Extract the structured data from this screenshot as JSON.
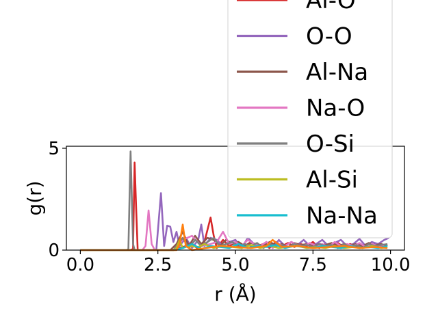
{
  "chart_data": {
    "type": "line",
    "title": "",
    "xlabel": "r (Å)",
    "ylabel": "g(r)",
    "xlim": [
      -0.45,
      10.45
    ],
    "ylim": [
      0,
      5.1
    ],
    "xticks": [
      "0.0",
      "2.5",
      "5.0",
      "7.5",
      "10.0"
    ],
    "yticks": [
      "0",
      "5"
    ],
    "grid": false,
    "legend_placement": "upper-right",
    "legend": [
      "Al-O",
      "O-O",
      "Al-Na",
      "Na-O",
      "O-Si",
      "Al-Si",
      "Na-Na"
    ],
    "series": [
      {
        "name": "Al-O",
        "color": "#d62728",
        "x": [
          0,
          1.6,
          1.7,
          1.75,
          1.8,
          1.85,
          2.0,
          3.0,
          3.6,
          3.8,
          4.0,
          4.2,
          4.3,
          4.4,
          4.6,
          4.8,
          5.0,
          5.2,
          5.5,
          5.7,
          5.9,
          6.1,
          6.3,
          6.5,
          6.7,
          6.9,
          7.1,
          7.3,
          7.5,
          7.7,
          7.9,
          8.1,
          8.3,
          8.5,
          8.7,
          8.9,
          9.1,
          9.3,
          9.5,
          9.7,
          9.9
        ],
        "y": [
          0,
          0,
          0.05,
          4.3,
          2.0,
          0,
          0,
          0,
          0.3,
          0.05,
          0.4,
          1.6,
          0.7,
          0.1,
          0.5,
          0.2,
          0.35,
          0.1,
          0.4,
          0.2,
          0.3,
          0.1,
          0.4,
          0.2,
          0.35,
          0.15,
          0.3,
          0.2,
          0.4,
          0.1,
          0.3,
          0.2,
          0.35,
          0.15,
          0.3,
          0.2,
          0.25,
          0.15,
          0.3,
          0.2,
          0.25
        ]
      },
      {
        "name": "O-O",
        "color": "#9467bd",
        "x": [
          0,
          2.3,
          2.45,
          2.6,
          2.7,
          2.8,
          2.9,
          3.0,
          3.1,
          3.2,
          3.4,
          3.6,
          3.8,
          3.9,
          4.0,
          4.2,
          4.4,
          4.6,
          4.8,
          5.0,
          5.2,
          5.4,
          5.6,
          5.8,
          6.0,
          6.2,
          6.4,
          6.6,
          6.8,
          7.0,
          7.2,
          7.4,
          7.6,
          7.8,
          8.0,
          8.2,
          8.4,
          8.6,
          8.8,
          9.0,
          9.2,
          9.4,
          9.6,
          9.8,
          9.95
        ],
        "y": [
          0,
          0,
          0,
          2.8,
          0.2,
          1.2,
          1.15,
          0.4,
          0.9,
          0.2,
          0.6,
          0.1,
          0.5,
          1.25,
          0.2,
          0.6,
          0.5,
          0.2,
          0.4,
          0.5,
          0.1,
          0.6,
          0.3,
          0.2,
          0.4,
          0.1,
          0.5,
          0.2,
          0.4,
          0.25,
          0.5,
          0.2,
          0.3,
          0.5,
          0.2,
          0.35,
          0.5,
          0.2,
          0.3,
          0.55,
          0.2,
          0.4,
          0.3,
          0.5,
          0.6
        ]
      },
      {
        "name": "Al-Na",
        "color": "#8c564b",
        "x": [
          0,
          2.9,
          3.1,
          3.3,
          3.5,
          3.7,
          3.9,
          4.1,
          4.3,
          4.5,
          4.7,
          4.9,
          5.1,
          5.3,
          5.5,
          5.7,
          5.9,
          6.1,
          6.3,
          6.5,
          6.7,
          6.9,
          7.1,
          7.3,
          7.5,
          7.7,
          7.9,
          8.1,
          8.3,
          8.5,
          8.7,
          8.9,
          9.1,
          9.3,
          9.5,
          9.7,
          9.9
        ],
        "y": [
          0,
          0,
          0.3,
          0.9,
          0.2,
          0.7,
          0.3,
          0.6,
          0.5,
          0.2,
          0.5,
          0.3,
          0.4,
          0.2,
          0.35,
          0.3,
          0.2,
          0.4,
          0.25,
          0.3,
          0.15,
          0.35,
          0.25,
          0.3,
          0.2,
          0.3,
          0.25,
          0.35,
          0.2,
          0.3,
          0.25,
          0.3,
          0.2,
          0.35,
          0.25,
          0.3,
          0.2
        ]
      },
      {
        "name": "Na-O",
        "color": "#e377c2",
        "x": [
          0,
          2.0,
          2.1,
          2.2,
          2.3,
          2.4,
          3.0,
          3.3,
          3.6,
          3.9,
          4.2,
          4.4,
          4.6,
          4.8,
          5.0,
          5.2,
          5.4,
          5.6,
          5.8,
          6.0,
          6.2,
          6.4,
          6.6,
          6.8,
          7.0,
          7.2,
          7.4,
          7.6,
          7.8,
          8.0,
          8.2,
          8.4,
          8.6,
          8.8,
          9.0,
          9.2,
          9.4,
          9.6,
          9.8
        ],
        "y": [
          0,
          0,
          0.2,
          1.95,
          0.3,
          0,
          0,
          0.5,
          0.7,
          0.2,
          0.3,
          0.4,
          0.9,
          0.3,
          0.4,
          0.2,
          0.5,
          0.3,
          0.2,
          0.4,
          0.1,
          0.3,
          0.2,
          0.4,
          0.25,
          0.2,
          0.35,
          0.2,
          0.3,
          0.15,
          0.4,
          0.2,
          0.3,
          0.2,
          0.35,
          0.15,
          0.3,
          0.2,
          0.25
        ]
      },
      {
        "name": "O-Si",
        "color": "#7f7f7f",
        "x": [
          0,
          1.5,
          1.55,
          1.62,
          1.7,
          1.75,
          2.0,
          3.0,
          3.3,
          3.5,
          3.7,
          3.9,
          4.1,
          4.3,
          4.5,
          4.7,
          4.9,
          5.1,
          5.3,
          5.5,
          5.7,
          5.9,
          6.1,
          6.3,
          6.5,
          6.7,
          6.9,
          7.1,
          7.3,
          7.5,
          7.7,
          7.9,
          8.1,
          8.3,
          8.5,
          8.7,
          8.9,
          9.1,
          9.3,
          9.5,
          9.7,
          9.9
        ],
        "y": [
          0,
          0,
          0.05,
          4.85,
          0.3,
          0,
          0,
          0,
          0.6,
          0.1,
          0.5,
          0.2,
          0.4,
          0.6,
          0.2,
          0.3,
          0.4,
          0.15,
          0.3,
          0.2,
          0.35,
          0.1,
          0.3,
          0.2,
          0.25,
          0.15,
          0.3,
          0.2,
          0.25,
          0.15,
          0.3,
          0.2,
          0.25,
          0.1,
          0.3,
          0.15,
          0.25,
          0.1,
          0.3,
          0.2,
          0.25,
          0.3
        ]
      },
      {
        "name": "Al-Si",
        "color": "#bcbd22",
        "x": [
          0,
          3.0,
          3.1,
          3.2,
          3.3,
          3.5,
          3.8,
          4.0,
          4.3,
          4.6,
          4.9,
          5.2,
          5.5,
          5.8,
          6.1,
          6.4,
          6.7,
          7.0,
          7.3,
          7.6,
          7.9,
          8.2,
          8.5,
          8.8,
          9.1,
          9.4,
          9.7,
          9.9
        ],
        "y": [
          0,
          0,
          0.1,
          0.5,
          0.1,
          0.2,
          0.15,
          0.3,
          0.1,
          0.2,
          0.15,
          0.1,
          0.25,
          0.1,
          0.2,
          0.1,
          0.15,
          0.2,
          0.1,
          0.15,
          0.1,
          0.2,
          0.1,
          0.15,
          0.1,
          0.2,
          0.1,
          0.15
        ]
      },
      {
        "name": "Na-Na",
        "color": "#17becf",
        "x": [
          0,
          3.0,
          3.3,
          3.6,
          3.9,
          4.2,
          4.5,
          4.8,
          5.1,
          5.4,
          5.7,
          6.0,
          6.3,
          6.6,
          6.9,
          7.2,
          7.5,
          7.8,
          8.1,
          8.4,
          8.7,
          9.0,
          9.3,
          9.6,
          9.9
        ],
        "y": [
          0,
          0,
          0.1,
          0.3,
          0.05,
          0.2,
          0.15,
          0.1,
          0.3,
          0.1,
          0.2,
          0.15,
          0.25,
          0.1,
          0.2,
          0.15,
          0.1,
          0.2,
          0.15,
          0.1,
          0.2,
          0.1,
          0.15,
          0.1,
          0.2
        ]
      },
      {
        "name": "",
        "color": "#ff7f0e",
        "x": [
          0,
          3.1,
          3.2,
          3.3,
          3.4,
          3.6,
          4.5,
          5.0,
          5.5,
          6.0,
          6.2,
          6.5,
          7.0,
          7.5,
          8.0,
          8.5,
          9.0,
          9.5,
          9.9
        ],
        "y": [
          0,
          0,
          0.3,
          1.25,
          0.2,
          0,
          0.2,
          0.15,
          0.1,
          0.2,
          0.5,
          0.15,
          0.2,
          0.1,
          0.15,
          0.2,
          0.1,
          0.15,
          0.1
        ]
      }
    ]
  }
}
